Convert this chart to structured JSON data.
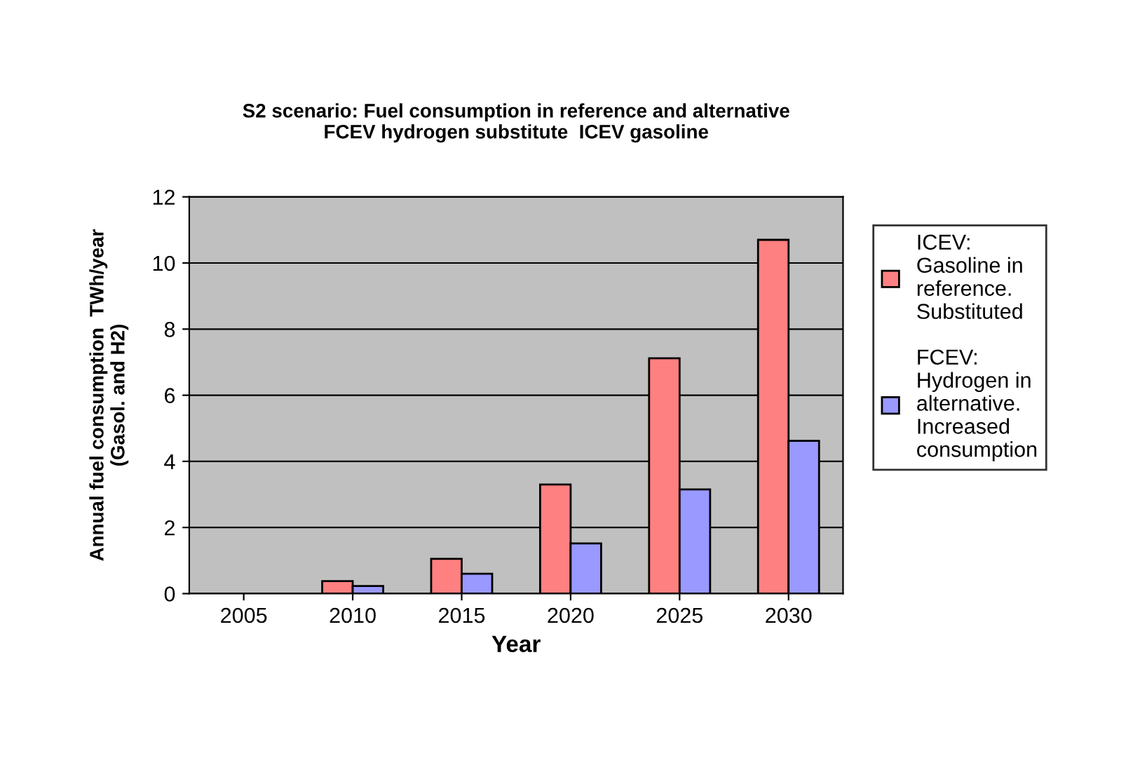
{
  "chart_data": {
    "type": "bar",
    "title": "S2 scenario: Fuel consumption in reference and alternative\nFCEV hydrogen substitute  ICEV gasoline",
    "xlabel": "Year",
    "ylabel": "Annual fuel consumption  TWh/year\n(Gasol. and H2)",
    "categories": [
      "2005",
      "2010",
      "2015",
      "2020",
      "2025",
      "2030"
    ],
    "series": [
      {
        "name": "ICEV: Gasoline in reference. Substituted",
        "color": "#ff8080",
        "values": [
          0,
          0.38,
          1.05,
          3.3,
          7.12,
          10.7
        ]
      },
      {
        "name": "FCEV: Hydrogen in alternative. Increased consumption",
        "color": "#9999ff",
        "values": [
          0,
          0.23,
          0.6,
          1.52,
          3.15,
          4.62
        ]
      }
    ],
    "ylim": [
      0,
      12
    ],
    "yticks": [
      0,
      2,
      4,
      6,
      8,
      10,
      12
    ],
    "grid": "y",
    "legend": "right"
  }
}
